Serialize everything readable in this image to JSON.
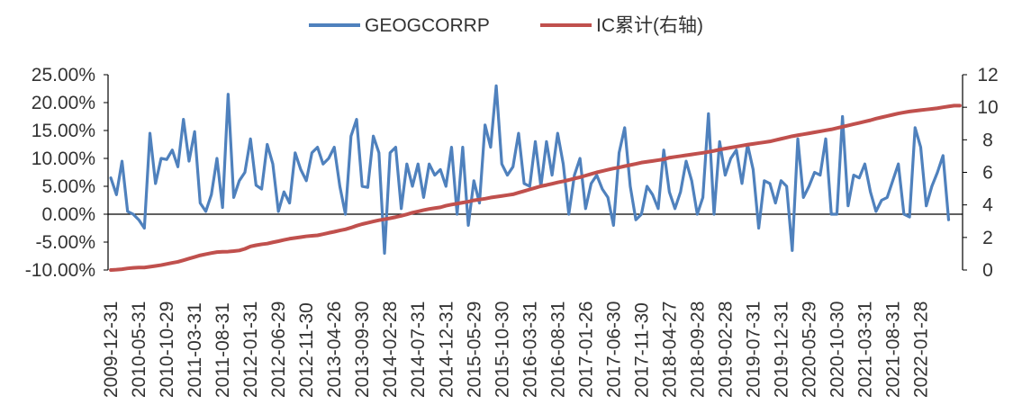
{
  "chart_data": {
    "type": "line",
    "legend": {
      "position": "top-center",
      "items": [
        {
          "label": "GEOGCORRP",
          "color": "#4F81BD"
        },
        {
          "label": "IC累计(右轴)",
          "color": "#C0504D"
        }
      ]
    },
    "y_left": {
      "ticks": [
        "25.00%",
        "20.00%",
        "15.00%",
        "10.00%",
        "5.00%",
        "0.00%",
        "-5.00%",
        "-10.00%"
      ],
      "range": [
        -0.1,
        0.25
      ]
    },
    "y_right": {
      "ticks": [
        "12",
        "10",
        "8",
        "6",
        "4",
        "2",
        "0"
      ],
      "range": [
        0,
        12
      ]
    },
    "x_tick_labels": [
      "2009-12-31",
      "2010-05-31",
      "2010-10-29",
      "2011-03-31",
      "2011-08-31",
      "2012-01-31",
      "2012-06-29",
      "2012-11-30",
      "2013-04-26",
      "2013-09-30",
      "2014-02-28",
      "2014-07-31",
      "2014-12-31",
      "2015-05-29",
      "2015-10-30",
      "2016-03-31",
      "2016-08-31",
      "2017-01-26",
      "2017-06-30",
      "2017-11-30",
      "2018-04-27",
      "2018-09-28",
      "2019-02-28",
      "2019-07-31",
      "2019-12-31",
      "2020-05-29",
      "2020-10-30",
      "2021-03-31",
      "2021-08-31",
      "2022-01-28"
    ],
    "x_tick_every": 5,
    "n_points": 153,
    "series": [
      {
        "name": "GEOGCORRP",
        "axis": "left",
        "color": "#4F81BD",
        "values": [
          0.065,
          0.035,
          0.095,
          0.005,
          0.0,
          -0.01,
          -0.025,
          0.145,
          0.055,
          0.1,
          0.098,
          0.115,
          0.085,
          0.17,
          0.095,
          0.148,
          0.02,
          0.005,
          0.035,
          0.1,
          0.012,
          0.215,
          0.03,
          0.06,
          0.075,
          0.135,
          0.052,
          0.045,
          0.125,
          0.09,
          0.005,
          0.04,
          0.02,
          0.11,
          0.08,
          0.06,
          0.11,
          0.12,
          0.09,
          0.1,
          0.12,
          0.05,
          0.0,
          0.14,
          0.17,
          0.05,
          0.048,
          0.14,
          0.11,
          -0.07,
          0.11,
          0.12,
          0.01,
          0.09,
          0.05,
          0.09,
          0.03,
          0.09,
          0.07,
          0.08,
          0.05,
          0.12,
          0.0,
          0.12,
          -0.02,
          0.06,
          0.02,
          0.16,
          0.12,
          0.23,
          0.09,
          0.07,
          0.085,
          0.145,
          0.055,
          0.05,
          0.13,
          0.05,
          0.13,
          0.07,
          0.145,
          0.09,
          0.0,
          0.07,
          0.1,
          0.01,
          0.055,
          0.07,
          0.045,
          0.03,
          -0.02,
          0.11,
          0.155,
          0.05,
          -0.01,
          0.0,
          0.05,
          0.035,
          0.01,
          0.115,
          0.04,
          0.01,
          0.04,
          0.095,
          0.06,
          0.0,
          0.03,
          0.18,
          0.0,
          0.13,
          0.07,
          0.1,
          0.115,
          0.055,
          0.125,
          0.08,
          -0.025,
          0.06,
          0.055,
          0.02,
          0.06,
          0.05,
          -0.065,
          0.135,
          0.03,
          0.05,
          0.075,
          0.07,
          0.135,
          0.0,
          0.0,
          0.175,
          0.015,
          0.07,
          0.065,
          0.09,
          0.04,
          0.005,
          0.025,
          0.03,
          0.06,
          0.09,
          0.0,
          -0.005,
          0.155,
          0.12,
          0.015,
          0.05,
          0.075,
          0.105,
          -0.01
        ],
        "_note_removed": true
      },
      {
        "name": "IC累计(右轴)",
        "axis": "right",
        "color": "#C0504D",
        "values": [
          0.0,
          0.02,
          0.05,
          0.1,
          0.13,
          0.15,
          0.15,
          0.2,
          0.25,
          0.3,
          0.37,
          0.44,
          0.5,
          0.6,
          0.7,
          0.8,
          0.9,
          0.97,
          1.04,
          1.1,
          1.12,
          1.13,
          1.16,
          1.2,
          1.3,
          1.45,
          1.52,
          1.58,
          1.62,
          1.7,
          1.77,
          1.85,
          1.92,
          1.97,
          2.02,
          2.07,
          2.1,
          2.13,
          2.2,
          2.28,
          2.35,
          2.43,
          2.5,
          2.6,
          2.72,
          2.82,
          2.9,
          2.98,
          3.06,
          3.12,
          3.18,
          3.25,
          3.33,
          3.42,
          3.52,
          3.6,
          3.68,
          3.75,
          3.8,
          3.85,
          3.95,
          4.02,
          4.08,
          4.14,
          4.2,
          4.28,
          4.33,
          4.38,
          4.45,
          4.5,
          4.55,
          4.6,
          4.65,
          4.75,
          4.85,
          4.95,
          5.05,
          5.15,
          5.22,
          5.3,
          5.38,
          5.45,
          5.53,
          5.62,
          5.7,
          5.8,
          5.9,
          6.0,
          6.08,
          6.16,
          6.24,
          6.3,
          6.38,
          6.45,
          6.52,
          6.6,
          6.65,
          6.7,
          6.75,
          6.8,
          6.9,
          6.95,
          7.0,
          7.05,
          7.1,
          7.15,
          7.2,
          7.26,
          7.32,
          7.4,
          7.46,
          7.52,
          7.58,
          7.64,
          7.7,
          7.75,
          7.8,
          7.85,
          7.9,
          7.98,
          8.06,
          8.14,
          8.22,
          8.28,
          8.34,
          8.4,
          8.46,
          8.52,
          8.58,
          8.64,
          8.72,
          8.8,
          8.88,
          8.96,
          9.04,
          9.12,
          9.2,
          9.3,
          9.38,
          9.46,
          9.54,
          9.62,
          9.68,
          9.74,
          9.78,
          9.82,
          9.86,
          9.9,
          9.94,
          10.0,
          10.05,
          10.1,
          10.1
        ]
      }
    ]
  }
}
